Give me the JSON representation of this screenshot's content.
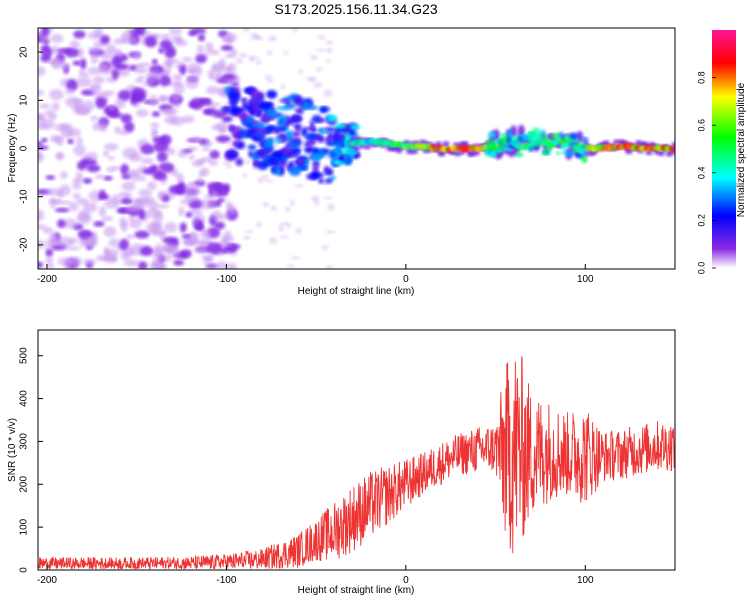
{
  "title": "S173.2025.156.11.34.G23",
  "chart_data": [
    {
      "type": "heatmap",
      "xlabel": "Height of straight line (km)",
      "ylabel": "Frequency (Hz)",
      "xlim": [
        -205,
        150
      ],
      "ylim": [
        -25,
        25
      ],
      "x_ticks": [
        -200,
        -100,
        0,
        100
      ],
      "y_ticks": [
        -20,
        -10,
        0,
        10,
        20
      ],
      "colorbar": {
        "label": "Normalized spectral amplitude",
        "range": [
          0,
          1
        ],
        "ticks": [
          "0.0",
          "0.2",
          "0.4",
          "0.6",
          "0.8"
        ],
        "colors": [
          "#ffffff",
          "#8a2be2",
          "#0000ff",
          "#00ffff",
          "#00ff00",
          "#ffff00",
          "#ff0000",
          "#ff1493"
        ]
      },
      "noise_region": {
        "x_range": [
          -205,
          -95
        ],
        "amplitude": 0.05
      },
      "transition_region": {
        "x_range": [
          -100,
          -30
        ],
        "amplitude": 0.3
      },
      "ridge": [
        {
          "x": -100,
          "y": 5.5,
          "amp": 0.3
        },
        {
          "x": -90,
          "y": 5,
          "amp": 0.3
        },
        {
          "x": -80,
          "y": 4,
          "amp": 0.3
        },
        {
          "x": -70,
          "y": 3,
          "amp": 0.35
        },
        {
          "x": -60,
          "y": 2.5,
          "amp": 0.3
        },
        {
          "x": -50,
          "y": 1.5,
          "amp": 0.35
        },
        {
          "x": -40,
          "y": 0.5,
          "amp": 0.4
        },
        {
          "x": -30,
          "y": 1,
          "amp": 0.45
        },
        {
          "x": -20,
          "y": 1.5,
          "amp": 0.5
        },
        {
          "x": -10,
          "y": 1,
          "amp": 0.55
        },
        {
          "x": 0,
          "y": 0.5,
          "amp": 0.7
        },
        {
          "x": 20,
          "y": 0,
          "amp": 0.95
        },
        {
          "x": 40,
          "y": 0,
          "amp": 0.9
        },
        {
          "x": 50,
          "y": 0.5,
          "amp": 0.45
        },
        {
          "x": 60,
          "y": 1,
          "amp": 0.4
        },
        {
          "x": 70,
          "y": 1.5,
          "amp": 0.5
        },
        {
          "x": 80,
          "y": 1.5,
          "amp": 0.7
        },
        {
          "x": 90,
          "y": 1.5,
          "amp": 0.6
        },
        {
          "x": 100,
          "y": 0,
          "amp": 0.7
        },
        {
          "x": 110,
          "y": 0,
          "amp": 0.8
        },
        {
          "x": 120,
          "y": 0.5,
          "amp": 0.9
        },
        {
          "x": 135,
          "y": 0,
          "amp": 0.95
        },
        {
          "x": 150,
          "y": 0,
          "amp": 0.95
        }
      ]
    },
    {
      "type": "line",
      "xlabel": "Height of straight line (km)",
      "ylabel": "SNR (10 * v/v)",
      "xlim": [
        -205,
        150
      ],
      "ylim": [
        0,
        560
      ],
      "x_ticks": [
        -200,
        -100,
        0,
        100
      ],
      "y_ticks": [
        0,
        100,
        200,
        300,
        400,
        500
      ],
      "line_color": "#ee3333",
      "series": [
        {
          "x": [
            -205,
            -180,
            -150,
            -120,
            -100,
            -80,
            -60,
            -50,
            -40,
            -30,
            -20,
            -10,
            0,
            10,
            20,
            30,
            40,
            50,
            55,
            60,
            65,
            70,
            80,
            90,
            100,
            110,
            120,
            130,
            140,
            150
          ],
          "mean": [
            15,
            15,
            15,
            16,
            18,
            25,
            45,
            70,
            90,
            120,
            150,
            175,
            200,
            225,
            250,
            270,
            280,
            285,
            270,
            280,
            280,
            270,
            280,
            270,
            270,
            265,
            270,
            280,
            290,
            290
          ],
          "spread": [
            15,
            15,
            15,
            16,
            20,
            25,
            40,
            50,
            70,
            80,
            80,
            70,
            60,
            50,
            50,
            50,
            55,
            60,
            200,
            260,
            220,
            150,
            120,
            100,
            120,
            60,
            60,
            60,
            60,
            60
          ]
        }
      ]
    }
  ]
}
